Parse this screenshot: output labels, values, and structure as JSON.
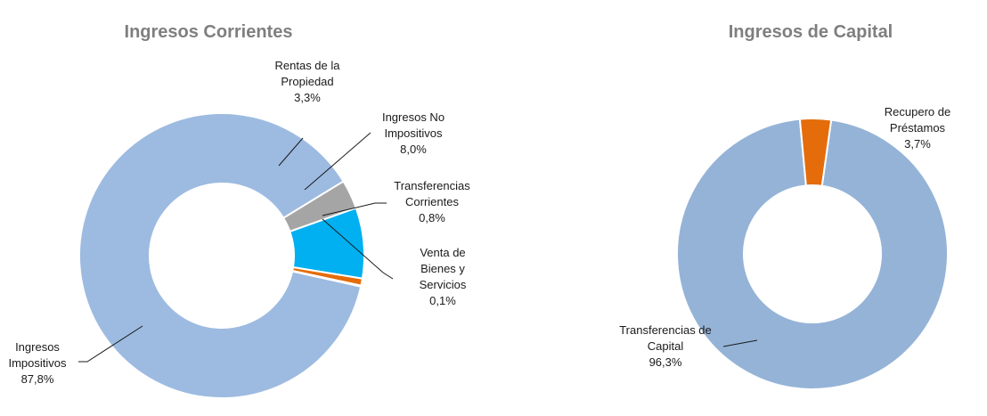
{
  "chart_data": [
    {
      "type": "pie",
      "variant": "donut",
      "title": "Ingresos Corrientes",
      "slices": [
        {
          "label": "Ingresos Impositivos",
          "label_lines": [
            "Ingresos",
            "Impositivos"
          ],
          "value": 87.8,
          "value_text": "87,8%",
          "color": "#9dbbe1"
        },
        {
          "label": "Rentas de la Propiedad",
          "label_lines": [
            "Rentas de la",
            "Propiedad"
          ],
          "value": 3.3,
          "value_text": "3,3%",
          "color": "#a5a5a5"
        },
        {
          "label": "Ingresos No Impositivos",
          "label_lines": [
            "Ingresos No",
            "Impositivos"
          ],
          "value": 8.0,
          "value_text": "8,0%",
          "color": "#00b0f0"
        },
        {
          "label": "Transferencias Corrientes",
          "label_lines": [
            "Transferencias",
            "Corrientes"
          ],
          "value": 0.8,
          "value_text": "0,8%",
          "color": "#e46c0a"
        },
        {
          "label": "Venta de Bienes y Servicios",
          "label_lines": [
            "Venta de",
            "Bienes y",
            "Servicios"
          ],
          "value": 0.1,
          "value_text": "0,1%",
          "color": "#4472c4"
        }
      ]
    },
    {
      "type": "pie",
      "variant": "donut",
      "title": "Ingresos de Capital",
      "slices": [
        {
          "label": "Transferencias de Capital",
          "label_lines": [
            "Transferencias de",
            "Capital"
          ],
          "value": 96.3,
          "value_text": "96,3%",
          "color": "#95b3d7"
        },
        {
          "label": "Recupero de Préstamos",
          "label_lines": [
            "Recupero de",
            "Préstamos"
          ],
          "value": 3.7,
          "value_text": "3,7%",
          "color": "#e46c0a"
        }
      ]
    }
  ]
}
